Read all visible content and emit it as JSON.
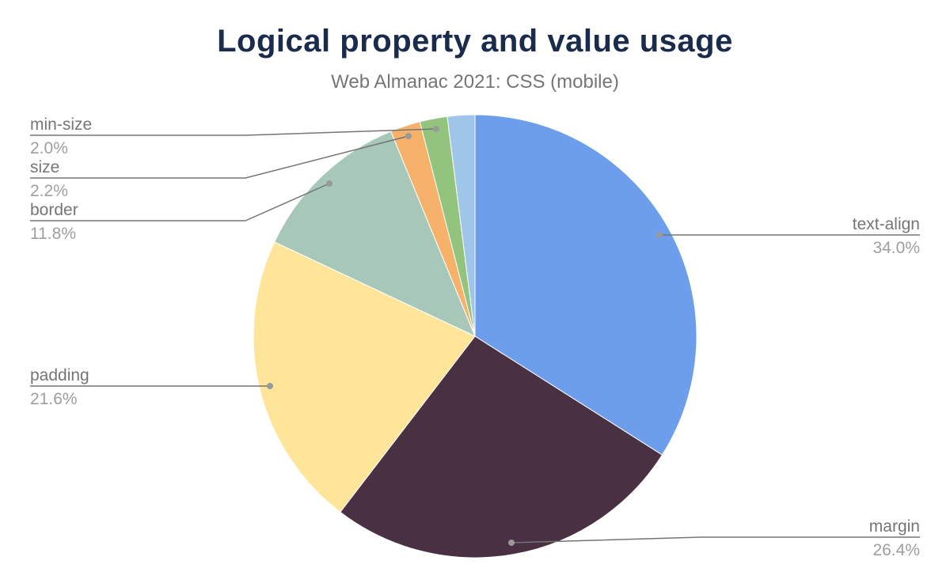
{
  "chart_data": {
    "type": "pie",
    "title": "Logical property and value usage",
    "subtitle": "Web Almanac 2021: CSS (mobile)",
    "slices": [
      {
        "label": "text-align",
        "value": 34.0,
        "display": "34.0%",
        "color": "#6d9eeb"
      },
      {
        "label": "margin",
        "value": 26.4,
        "display": "26.4%",
        "color": "#4a3043"
      },
      {
        "label": "padding",
        "value": 21.6,
        "display": "21.6%",
        "color": "#ffe599"
      },
      {
        "label": "border",
        "value": 11.8,
        "display": "11.8%",
        "color": "#a7c8b9"
      },
      {
        "label": "size",
        "value": 2.2,
        "display": "2.2%",
        "color": "#f6b26b"
      },
      {
        "label": "min-size",
        "value": 2.0,
        "display": "2.0%",
        "color": "#93c47d"
      },
      {
        "label": "",
        "value": 2.0,
        "display": "",
        "color": "#9fc5e8"
      }
    ],
    "legend": "callout-labels"
  }
}
